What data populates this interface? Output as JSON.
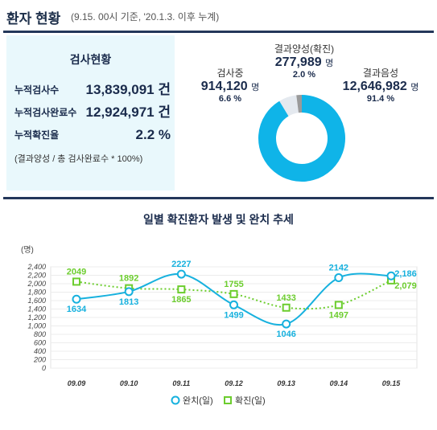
{
  "header": {
    "title": "환자 현황",
    "subtitle": "(9.15. 00시 기준, '20.1.3. 이후 누계)"
  },
  "test_status": {
    "title": "검사현황",
    "rows": [
      {
        "label": "누적검사수",
        "value": "13,839,091 건"
      },
      {
        "label": "누적검사완료수",
        "value": "12,924,971 건"
      },
      {
        "label": "누적확진율",
        "value": "2.2 %"
      }
    ],
    "note": "(결과양성 / 총 검사완료수 * 100%)"
  },
  "donut": {
    "testing": {
      "label": "검사중",
      "value": "914,120",
      "unit": "명",
      "percent": "6.6 %",
      "share": 6.6
    },
    "positive": {
      "label": "결과양성(확진)",
      "value": "277,989",
      "unit": "명",
      "percent": "2.0 %",
      "share": 2.0
    },
    "negative": {
      "label": "결과음성",
      "value": "12,646,982",
      "unit": "명",
      "percent": "91.4 %",
      "share": 91.4
    },
    "colors": {
      "negative": "#0fb4e8",
      "testing": "#e4e9ef",
      "positive": "#9a9a9a"
    }
  },
  "chart_data": {
    "type": "line",
    "title": "일별 확진환자 발생 및 완치 추세",
    "ylabel": "(명)",
    "categories": [
      "09.09",
      "09.10",
      "09.11",
      "09.12",
      "09.13",
      "09.14",
      "09.15"
    ],
    "ylim": [
      0,
      2400
    ],
    "yticks": [
      "2,400",
      "2,200",
      "2,000",
      "1,800",
      "1,600",
      "1,400",
      "1,200",
      "1,000",
      "800",
      "600",
      "400",
      "200",
      "0"
    ],
    "series": [
      {
        "name": "완치(일)",
        "values": [
          1634,
          1813,
          2227,
          1499,
          1046,
          2142,
          2186
        ],
        "labels": [
          "1634",
          "1813",
          "2227",
          "1499",
          "1046",
          "2142",
          "2,186"
        ],
        "color": "#17b1de",
        "style": "solid"
      },
      {
        "name": "확진(일)",
        "values": [
          2049,
          1892,
          1865,
          1755,
          1433,
          1497,
          2079
        ],
        "labels": [
          "2049",
          "1892",
          "1865",
          "1755",
          "1433",
          "1497",
          "2,079"
        ],
        "color": "#6ccd2e",
        "style": "dotted"
      }
    ],
    "grid": true,
    "legend": "bottom"
  }
}
